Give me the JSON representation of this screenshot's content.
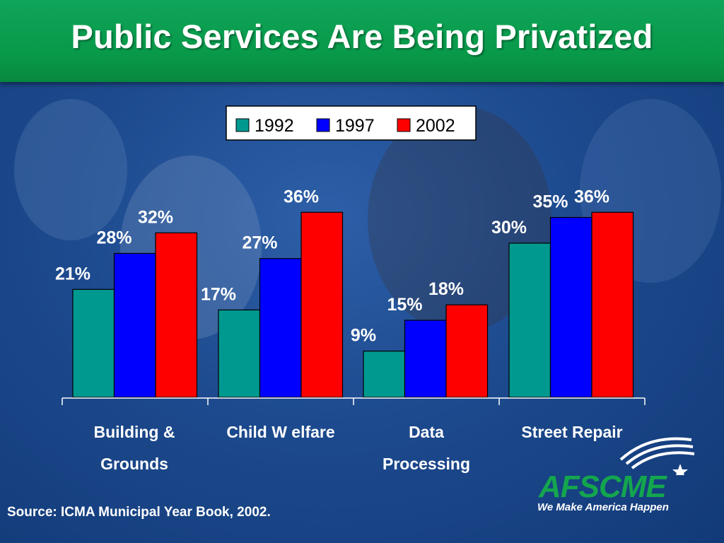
{
  "header": {
    "title": "Public Services Are Being Privatized"
  },
  "source": "Source: ICMA Municipal Year Book, 2002.",
  "logo": {
    "name": "AFSCME",
    "tagline": "We Make America Happen",
    "color": "#14a64e"
  },
  "colors": {
    "header_green": "#089848",
    "background_blue": "#1d4a8e"
  },
  "chart_data": {
    "type": "bar",
    "categories": [
      [
        "Building &",
        "Grounds"
      ],
      [
        "Child W elfare"
      ],
      [
        "Data",
        "Processing"
      ],
      [
        "Street  Repair"
      ]
    ],
    "series": [
      {
        "name": "1992",
        "color": "#009990",
        "values": [
          21,
          17,
          9,
          30
        ],
        "labels": [
          "21%",
          "17%",
          "9%",
          "30%"
        ]
      },
      {
        "name": "1997",
        "color": "#0000ff",
        "values": [
          28,
          27,
          15,
          35
        ],
        "labels": [
          "28%",
          "27%",
          "15%",
          "35%"
        ]
      },
      {
        "name": "2002",
        "color": "#ff0000",
        "values": [
          32,
          36,
          18,
          36
        ],
        "labels": [
          "32%",
          "36%",
          "18%",
          "36%"
        ]
      }
    ],
    "ylim": [
      0,
      45
    ],
    "unit": "%",
    "legend": "top-center",
    "grid": false,
    "xlabel": "",
    "ylabel": ""
  }
}
